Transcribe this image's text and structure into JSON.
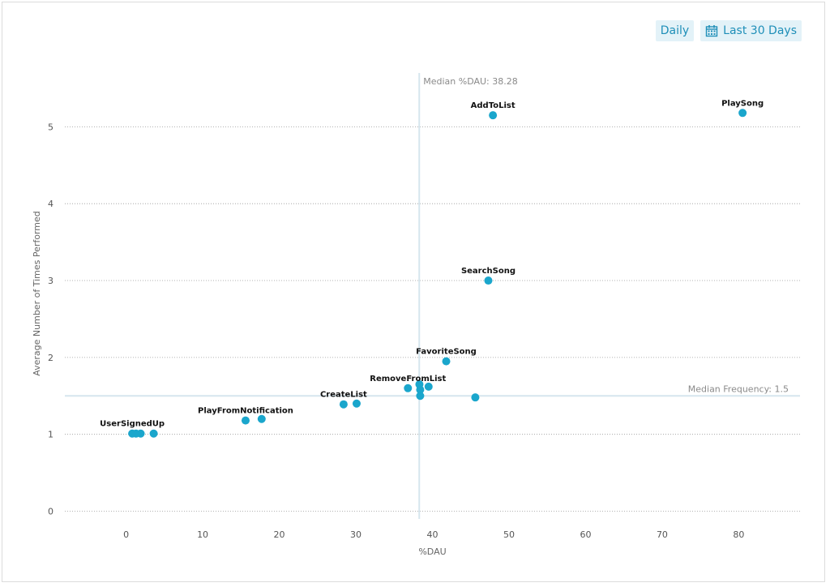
{
  "controls": {
    "granularity_label": "Daily",
    "range_label": "Last 30 Days"
  },
  "colors": {
    "point": "#1aa6cc",
    "median_line": "#d6e6ee",
    "grid": "#999999",
    "button_text": "#1f8fb8"
  },
  "chart_data": {
    "type": "scatter",
    "title": "",
    "xlabel": "%DAU",
    "ylabel": "Average Number of Times Performed",
    "xlim": [
      -8,
      88
    ],
    "ylim": [
      -0.1,
      5.7
    ],
    "xticks": [
      0,
      10,
      20,
      30,
      40,
      50,
      60,
      70,
      80
    ],
    "yticks": [
      0,
      1,
      2,
      3,
      4,
      5
    ],
    "median_x": 38.28,
    "median_x_label": "Median %DAU: 38.28",
    "median_y": 1.5,
    "median_y_label": "Median Frequency: 1.5",
    "points": [
      {
        "x": 80.5,
        "y": 5.18,
        "label": "PlaySong"
      },
      {
        "x": 47.9,
        "y": 5.15,
        "label": "AddToList"
      },
      {
        "x": 47.3,
        "y": 3.0,
        "label": "SearchSong"
      },
      {
        "x": 41.8,
        "y": 1.95,
        "label": "FavoriteSong"
      },
      {
        "x": 36.8,
        "y": 1.6,
        "label": "RemoveFromList"
      },
      {
        "x": 38.3,
        "y": 1.65,
        "label": ""
      },
      {
        "x": 38.4,
        "y": 1.58,
        "label": ""
      },
      {
        "x": 39.5,
        "y": 1.62,
        "label": ""
      },
      {
        "x": 38.4,
        "y": 1.5,
        "label": ""
      },
      {
        "x": 45.6,
        "y": 1.48,
        "label": ""
      },
      {
        "x": 28.4,
        "y": 1.39,
        "label": "CreateList"
      },
      {
        "x": 30.1,
        "y": 1.4,
        "label": ""
      },
      {
        "x": 15.6,
        "y": 1.18,
        "label": "PlayFromNotification"
      },
      {
        "x": 17.7,
        "y": 1.2,
        "label": ""
      },
      {
        "x": 0.8,
        "y": 1.01,
        "label": "UserSignedUp"
      },
      {
        "x": 1.3,
        "y": 1.01,
        "label": ""
      },
      {
        "x": 1.9,
        "y": 1.01,
        "label": ""
      },
      {
        "x": 3.6,
        "y": 1.01,
        "label": ""
      }
    ]
  }
}
